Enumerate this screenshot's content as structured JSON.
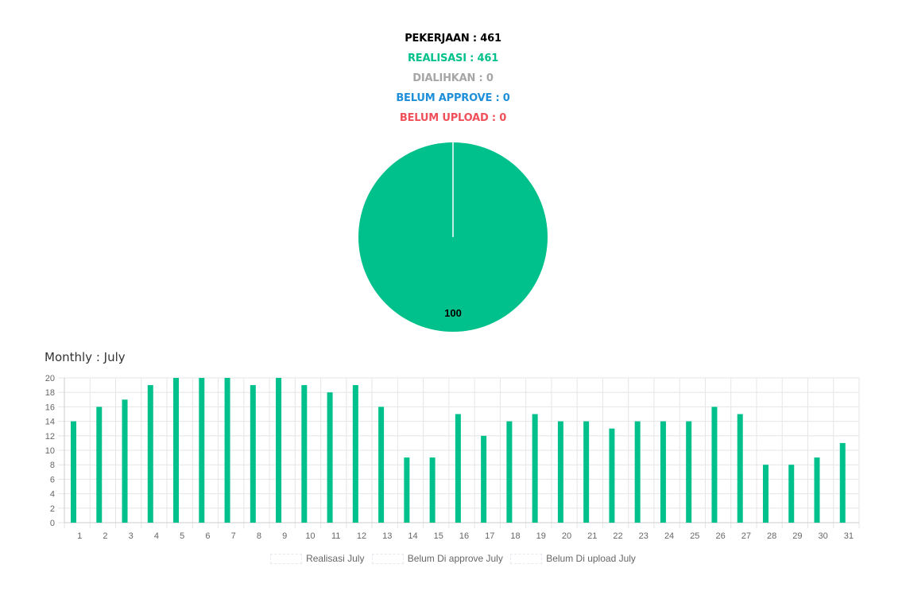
{
  "summary": {
    "pekerjaan": "PEKERJAAN : 461",
    "realisasi": "REALISASI : 461",
    "dialihkan": "DIALIHKAN : 0",
    "belum_approve": "BELUM APPROVE : 0",
    "belum_upload": "BELUM UPLOAD : 0"
  },
  "colors": {
    "pekerjaan": "#000000",
    "realisasi": "#00c08b",
    "dialihkan": "#a6a6a6",
    "belum_approve": "#1e8fd8",
    "belum_upload": "#f0505a",
    "grid": "#e6e6e6",
    "axis_text": "#666666"
  },
  "monthly_title": "Monthly : July",
  "chart_data": [
    {
      "type": "pie",
      "slices": [
        {
          "label": "Realisasi",
          "value": 100,
          "color": "#00c08b"
        },
        {
          "label": "Dialihkan",
          "value": 0,
          "color": "#a6a6a6"
        },
        {
          "label": "Belum Approve",
          "value": 0,
          "color": "#1e8fd8"
        },
        {
          "label": "Belum Upload",
          "value": 0,
          "color": "#f0505a"
        }
      ],
      "data_label": "100"
    },
    {
      "type": "bar",
      "categories": [
        "1",
        "2",
        "3",
        "4",
        "5",
        "6",
        "7",
        "8",
        "9",
        "10",
        "11",
        "12",
        "13",
        "14",
        "15",
        "16",
        "17",
        "18",
        "19",
        "20",
        "21",
        "22",
        "23",
        "24",
        "25",
        "26",
        "27",
        "28",
        "29",
        "30",
        "31"
      ],
      "series": [
        {
          "name": "Realisasi July",
          "color": "#00c08b",
          "values": [
            14,
            16,
            17,
            19,
            20,
            20,
            20,
            19,
            20,
            19,
            18,
            19,
            16,
            9,
            9,
            15,
            12,
            14,
            15,
            14,
            14,
            13,
            14,
            14,
            14,
            16,
            15,
            8,
            8,
            9,
            11
          ]
        },
        {
          "name": "Belum Di approve July",
          "color": "#1e8fd8",
          "values": [
            0,
            0,
            0,
            0,
            0,
            0,
            0,
            0,
            0,
            0,
            0,
            0,
            0,
            0,
            0,
            0,
            0,
            0,
            0,
            0,
            0,
            0,
            0,
            0,
            0,
            0,
            0,
            0,
            0,
            0,
            0
          ]
        },
        {
          "name": "Belum Di upload July",
          "color": "#8e6fd1",
          "values": [
            0,
            0,
            0,
            0,
            0,
            0,
            0,
            0,
            0,
            0,
            0,
            0,
            0,
            0,
            0,
            0,
            0,
            0,
            0,
            0,
            0,
            0,
            0,
            0,
            0,
            0,
            0,
            0,
            0,
            0,
            0
          ]
        }
      ],
      "ylim": [
        0,
        20
      ],
      "yticks": [
        0,
        2,
        4,
        6,
        8,
        10,
        12,
        14,
        16,
        18,
        20
      ],
      "grid": true,
      "legend": "bottom"
    }
  ]
}
